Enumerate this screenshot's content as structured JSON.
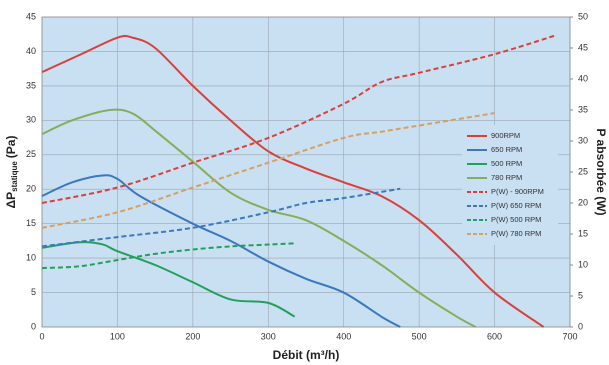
{
  "chart_data": {
    "type": "line",
    "xlabel": "Débit (m³/h)",
    "ylabel": "ΔP",
    "ylabel_sub": "statique",
    "ylabel_unit": "(Pa)",
    "y2label": "P absorbée (W)",
    "xlim": [
      0,
      700
    ],
    "xticks": [
      0,
      100,
      200,
      300,
      400,
      500,
      600,
      700
    ],
    "ylim": [
      0,
      45
    ],
    "yticks": [
      0,
      5,
      10,
      15,
      20,
      25,
      30,
      35,
      40,
      45
    ],
    "y2lim": [
      0,
      50
    ],
    "y2ticks": [
      0,
      5,
      10,
      15,
      20,
      25,
      30,
      35,
      40,
      45,
      50
    ],
    "grid": true,
    "legend": "right",
    "series": [
      {
        "name": "900RPM",
        "color": "#d9403a",
        "dash": false,
        "x": [
          0,
          50,
          100,
          120,
          150,
          200,
          250,
          300,
          350,
          400,
          450,
          500,
          550,
          600,
          665
        ],
        "values": [
          37,
          39.5,
          42,
          42,
          40.5,
          35,
          30,
          25.5,
          23,
          21,
          19,
          15.5,
          10.5,
          5,
          0
        ]
      },
      {
        "name": "650 RPM",
        "color": "#3a78c0",
        "dash": false,
        "x": [
          0,
          40,
          80,
          100,
          130,
          200,
          250,
          300,
          350,
          400,
          450,
          475
        ],
        "values": [
          19,
          21,
          22,
          21.5,
          19,
          15,
          12.5,
          9.5,
          7,
          5,
          1.5,
          0
        ]
      },
      {
        "name": "500 RPM",
        "color": "#22a05a",
        "dash": false,
        "x": [
          0,
          50,
          80,
          100,
          150,
          200,
          250,
          300,
          335
        ],
        "values": [
          11.5,
          12.3,
          12,
          11,
          9,
          6.5,
          4,
          3.5,
          1.5
        ]
      },
      {
        "name": "780 RPM",
        "color": "#86ad58",
        "dash": false,
        "x": [
          0,
          40,
          90,
          120,
          150,
          200,
          250,
          300,
          350,
          400,
          450,
          500,
          550,
          575
        ],
        "values": [
          28,
          30,
          31.5,
          31,
          28.5,
          24,
          19.5,
          17,
          15.5,
          12.5,
          9,
          5,
          1.5,
          0
        ]
      },
      {
        "name": "P(W) - 900RPM",
        "color": "#d9403a",
        "dash": true,
        "axis": "y2",
        "x": [
          0,
          100,
          200,
          300,
          400,
          450,
          500,
          600,
          680
        ],
        "values": [
          20,
          22.5,
          26.5,
          30.5,
          36,
          39.5,
          41,
          44,
          47
        ]
      },
      {
        "name": "P(W) 650 RPM",
        "color": "#3a78c0",
        "dash": true,
        "axis": "y2",
        "x": [
          0,
          100,
          200,
          300,
          350,
          400,
          475
        ],
        "values": [
          13,
          14.5,
          16,
          18.5,
          20,
          20.8,
          22.3
        ]
      },
      {
        "name": "P(W) 500 RPM",
        "color": "#22a05a",
        "dash": true,
        "axis": "y2",
        "x": [
          0,
          50,
          100,
          150,
          200,
          250,
          300,
          335
        ],
        "values": [
          9.5,
          9.8,
          10.8,
          11.8,
          12.5,
          13,
          13.3,
          13.5
        ]
      },
      {
        "name": "P(W) 780 RPM",
        "color": "#d7a060",
        "dash": true,
        "axis": "y2",
        "x": [
          0,
          100,
          200,
          300,
          400,
          450,
          500,
          600
        ],
        "values": [
          16,
          18.5,
          22.5,
          26.5,
          30.5,
          31.5,
          32.5,
          34.5
        ]
      }
    ]
  }
}
